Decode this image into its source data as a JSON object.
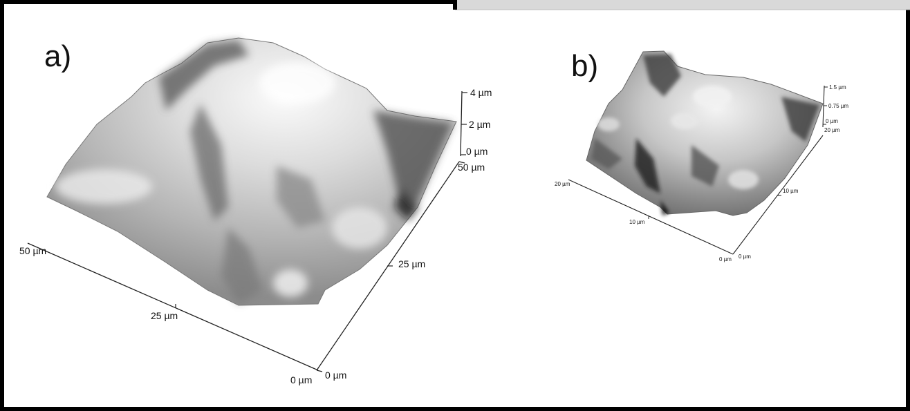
{
  "colors": {
    "frame": "#000000",
    "corner_tab": "#d9d9d9",
    "axis": "#222222",
    "surface_light": "#f2f2f2",
    "surface_mid": "#b8b8b8",
    "surface_dark": "#4a4a4a"
  },
  "panel_a": {
    "label": "a)",
    "z_ticks": [
      "4 µm",
      "2 µm",
      "0 µm"
    ],
    "right_axis_ticks": [
      "50 µm",
      "25 µm",
      "0 µm"
    ],
    "left_axis_ticks": [
      "50 µm",
      "25 µm",
      "0 µm"
    ]
  },
  "panel_b": {
    "label": "b)",
    "z_ticks": [
      "1.5 µm",
      "0.75 µm",
      "0 µm"
    ],
    "right_axis_ticks": [
      "20 µm",
      "10 µm",
      "0 µm"
    ],
    "left_axis_ticks": [
      "20 µm",
      "10 µm",
      "0 µm"
    ]
  }
}
